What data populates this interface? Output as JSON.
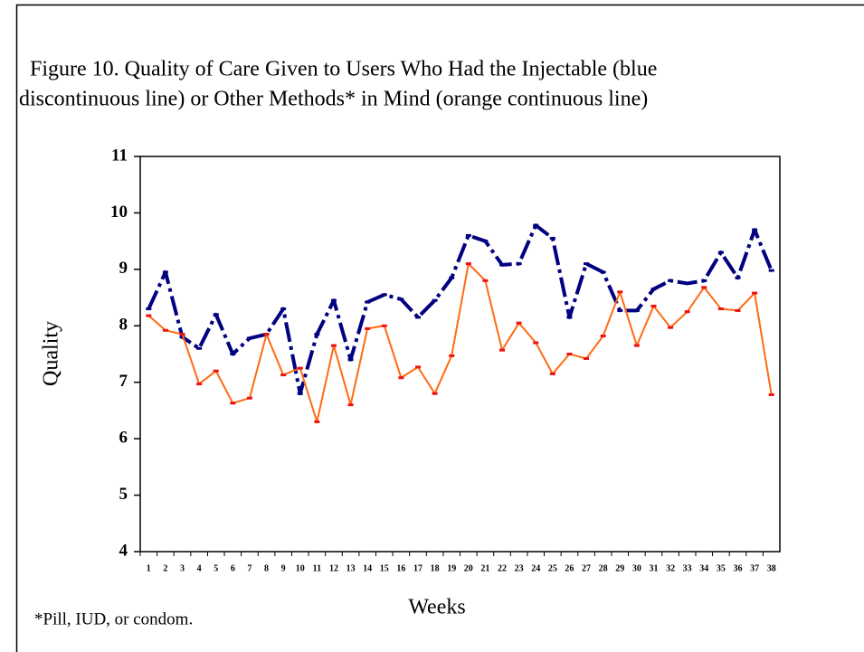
{
  "chart_data": {
    "type": "line",
    "title": [
      "Figure 10. Quality of Care Given to Users Who Had the Injectable (blue",
      "discontinuous line) or Other Methods* in Mind (orange continuous line)"
    ],
    "xlabel": "Weeks",
    "ylabel": "Quality",
    "footnote": "*Pill, IUD, or condom.",
    "categories": [
      1,
      2,
      3,
      4,
      5,
      6,
      7,
      8,
      9,
      10,
      11,
      12,
      13,
      14,
      15,
      16,
      17,
      18,
      19,
      20,
      21,
      22,
      23,
      24,
      25,
      26,
      27,
      28,
      29,
      30,
      31,
      32,
      33,
      34,
      35,
      36,
      37,
      38
    ],
    "series": [
      {
        "name": "Injectable",
        "color": "#000080",
        "dashed": true,
        "values": [
          8.3,
          8.95,
          7.8,
          7.6,
          8.2,
          7.5,
          7.78,
          7.85,
          8.3,
          6.8,
          7.85,
          8.45,
          7.4,
          8.42,
          8.55,
          8.47,
          8.15,
          8.45,
          8.85,
          9.6,
          9.5,
          9.08,
          9.1,
          9.78,
          9.55,
          8.15,
          9.1,
          8.95,
          8.27,
          8.27,
          8.65,
          8.8,
          8.75,
          8.8,
          9.3,
          8.85,
          9.7,
          8.98
        ]
      },
      {
        "name": "Other Methods",
        "color": "#ff6a13",
        "dashed": false,
        "values": [
          8.18,
          7.92,
          7.85,
          6.97,
          7.2,
          6.63,
          6.72,
          7.85,
          7.13,
          7.25,
          6.3,
          7.65,
          6.6,
          7.95,
          8.0,
          7.08,
          7.27,
          6.8,
          7.47,
          9.1,
          8.8,
          7.57,
          8.05,
          7.7,
          7.15,
          7.5,
          7.42,
          7.82,
          8.6,
          7.65,
          8.35,
          7.97,
          8.25,
          8.68,
          8.3,
          8.27,
          8.58,
          6.78
        ]
      }
    ],
    "ylim": [
      4,
      11
    ],
    "yticks": [
      4,
      5,
      6,
      7,
      8,
      9,
      10,
      11
    ],
    "grid": false
  }
}
